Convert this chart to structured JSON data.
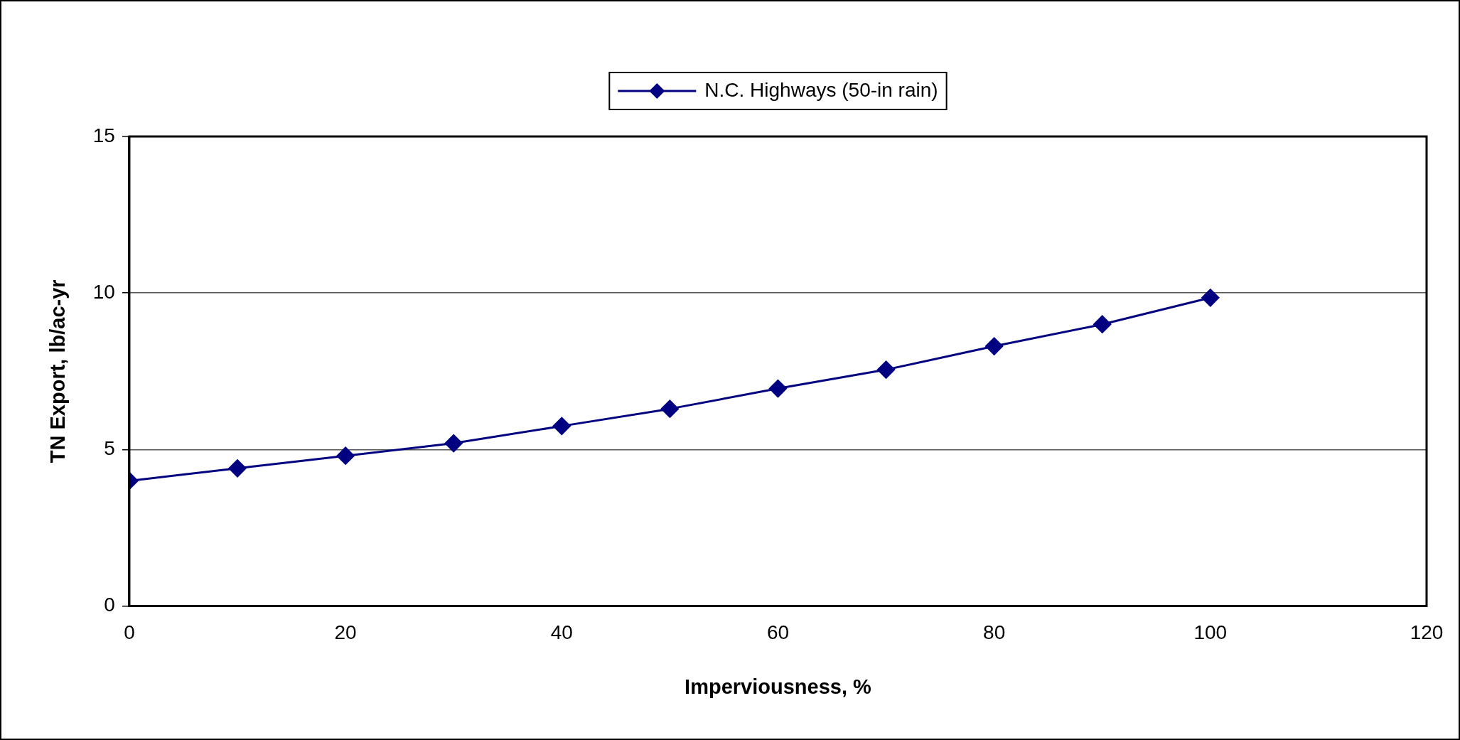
{
  "chart_data": {
    "type": "line",
    "xlabel": "Imperviousness, %",
    "ylabel": "TN Export, lb/ac-yr",
    "x": [
      0,
      10,
      20,
      30,
      40,
      50,
      60,
      70,
      80,
      90,
      100
    ],
    "series": [
      {
        "name": "N.C. Highways (50-in rain)",
        "color": "#000080",
        "values": [
          4.0,
          4.4,
          4.8,
          5.2,
          5.75,
          6.3,
          6.95,
          7.55,
          8.3,
          9.0,
          9.85
        ]
      }
    ],
    "xlim": [
      0,
      120
    ],
    "xticks": [
      0,
      20,
      40,
      60,
      80,
      100,
      120
    ],
    "ylim": [
      0,
      15
    ],
    "yticks": [
      0,
      5,
      10,
      15
    ],
    "grid": "y",
    "legend": "top",
    "marker": "diamond",
    "line_style": "solid"
  }
}
